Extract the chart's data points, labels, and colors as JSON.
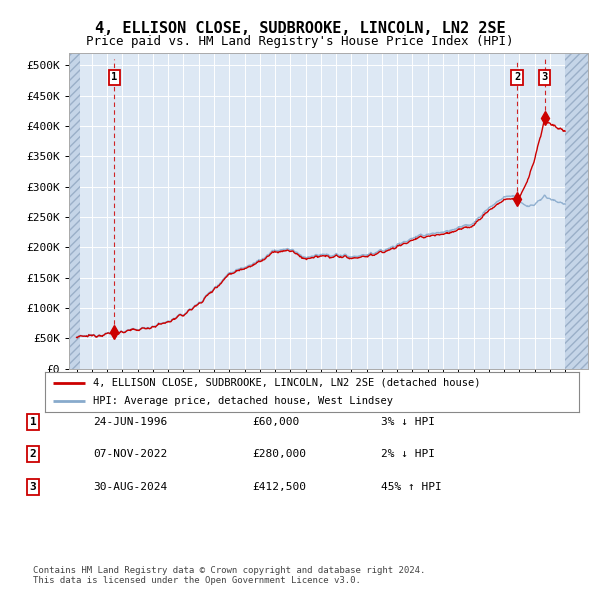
{
  "title": "4, ELLISON CLOSE, SUDBROOKE, LINCOLN, LN2 2SE",
  "subtitle": "Price paid vs. HM Land Registry's House Price Index (HPI)",
  "title_fontsize": 11,
  "subtitle_fontsize": 9,
  "ylabel_ticks": [
    "£0",
    "£50K",
    "£100K",
    "£150K",
    "£200K",
    "£250K",
    "£300K",
    "£350K",
    "£400K",
    "£450K",
    "£500K"
  ],
  "ytick_values": [
    0,
    50000,
    100000,
    150000,
    200000,
    250000,
    300000,
    350000,
    400000,
    450000,
    500000
  ],
  "ylim": [
    0,
    520000
  ],
  "xlim_start": 1993.5,
  "xlim_end": 2027.5,
  "sale_dates": [
    1996.48,
    2022.85,
    2024.66
  ],
  "sale_prices": [
    60000,
    280000,
    412500
  ],
  "sale_labels": [
    "1",
    "2",
    "3"
  ],
  "line1_label": "4, ELLISON CLOSE, SUDBROOKE, LINCOLN, LN2 2SE (detached house)",
  "line2_label": "HPI: Average price, detached house, West Lindsey",
  "line1_color": "#cc0000",
  "line2_color": "#88aacc",
  "plot_bg_color": "#dde8f4",
  "grid_color": "#ffffff",
  "footer_text": "Contains HM Land Registry data © Crown copyright and database right 2024.\nThis data is licensed under the Open Government Licence v3.0.",
  "table_data": [
    [
      "1",
      "24-JUN-1996",
      "£60,000",
      "3% ↓ HPI"
    ],
    [
      "2",
      "07-NOV-2022",
      "£280,000",
      "2% ↓ HPI"
    ],
    [
      "3",
      "30-AUG-2024",
      "£412,500",
      "45% ↑ HPI"
    ]
  ]
}
